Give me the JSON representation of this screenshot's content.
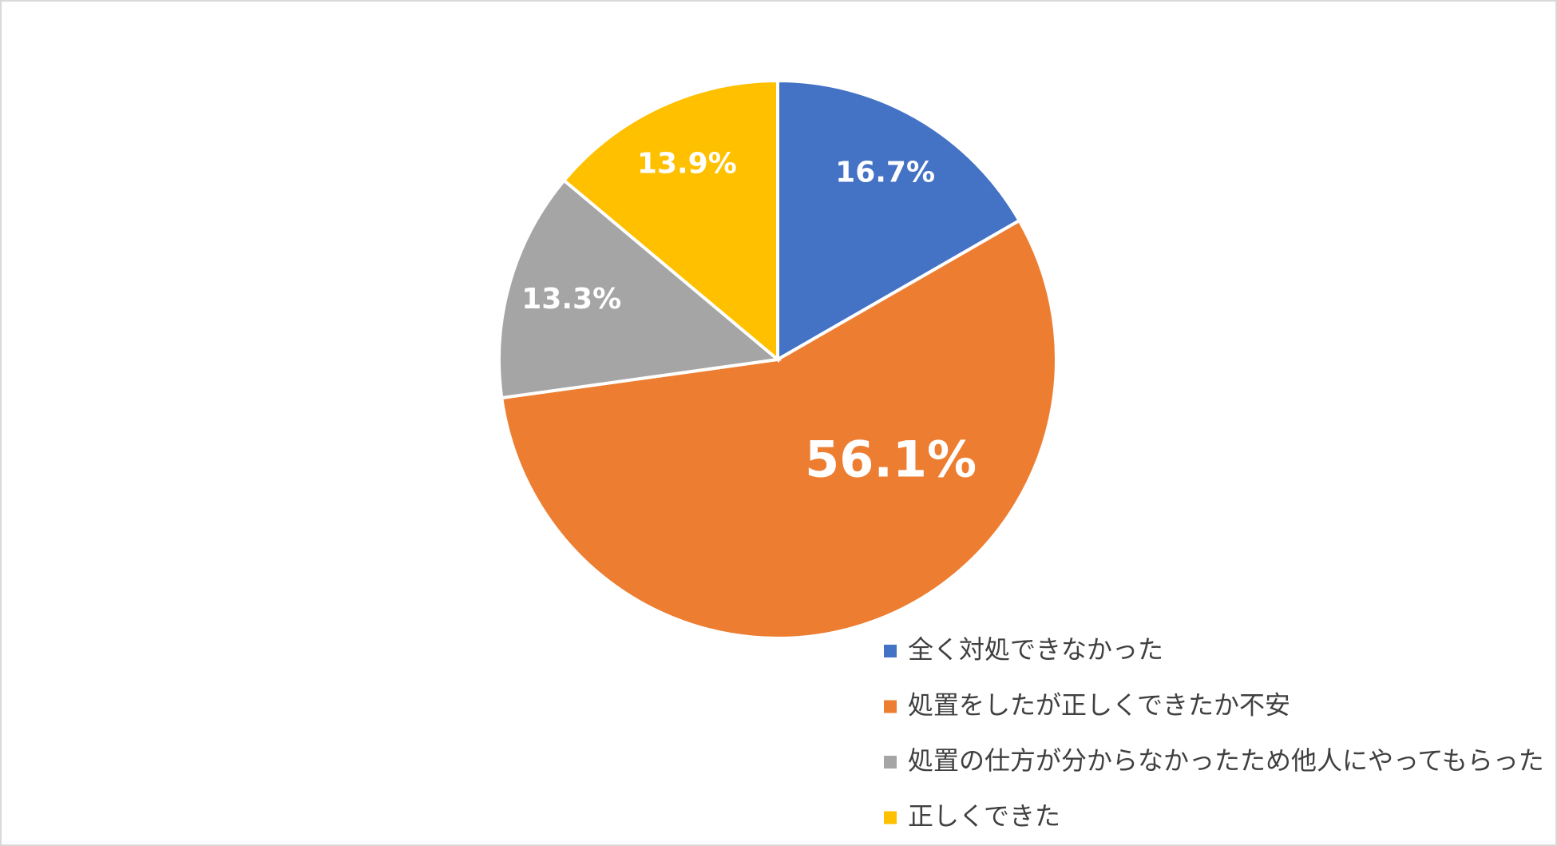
{
  "chart_data": {
    "type": "pie",
    "categories": [
      "全く対処できなかった",
      "処置をしたが正しくできたか不安",
      "処置の仕方が分からなかったため他人にやってもらった",
      "正しくできた"
    ],
    "values": [
      16.7,
      56.1,
      13.3,
      13.9
    ],
    "value_labels": [
      "16.7%",
      "56.1%",
      "13.3%",
      "13.9%"
    ],
    "colors": [
      "#4472c4",
      "#ed7d31",
      "#a5a5a5",
      "#ffc000"
    ],
    "legend": "bottom-right"
  }
}
